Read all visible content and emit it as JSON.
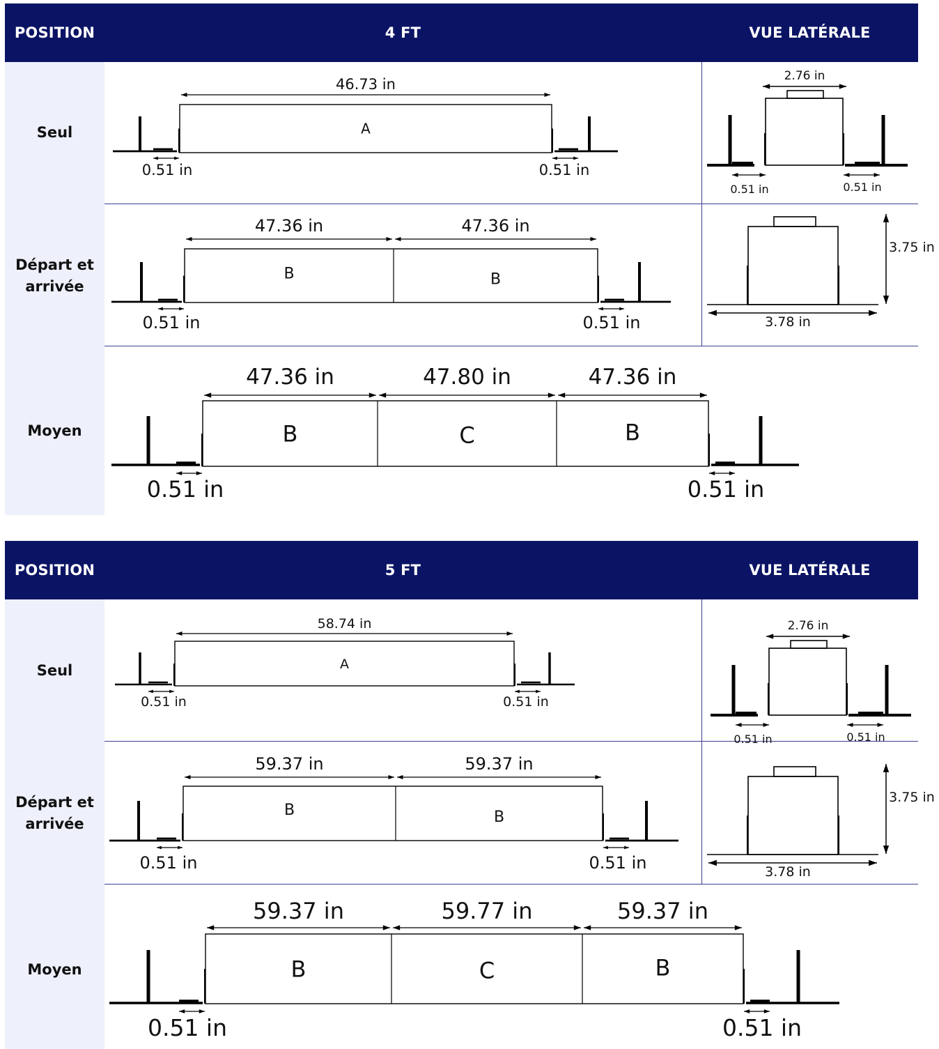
{
  "tables": [
    {
      "header": {
        "position": "POSITION",
        "size": "4 FT",
        "side_view": "VUE LATÉRALE"
      },
      "rows": [
        {
          "label": "Seul",
          "segments": [
            {
              "letter": "A",
              "dim": "46.73 in"
            }
          ],
          "gap_left": "0.51 in",
          "gap_right": "0.51 in"
        },
        {
          "label": "Départ et\narrivée",
          "segments": [
            {
              "letter": "B",
              "dim": "47.36 in"
            },
            {
              "letter": "B",
              "dim": "47.36 in"
            }
          ],
          "gap_left": "0.51 in",
          "gap_right": "0.51 in"
        },
        {
          "label": "Moyen",
          "segments": [
            {
              "letter": "B",
              "dim": "47.36 in"
            },
            {
              "letter": "C",
              "dim": "47.80 in"
            },
            {
              "letter": "B",
              "dim": "47.36 in"
            }
          ],
          "gap_left": "0.51 in",
          "gap_right": "0.51 in"
        }
      ],
      "side_view": {
        "top_width": "2.76 in",
        "gap_left": "0.51 in",
        "gap_right": "0.51 in",
        "height": "3.75 in",
        "base_width": "3.78 in"
      }
    },
    {
      "header": {
        "position": "POSITION",
        "size": "5 FT",
        "side_view": "VUE LATÉRALE"
      },
      "rows": [
        {
          "label": "Seul",
          "segments": [
            {
              "letter": "A",
              "dim": "58.74 in"
            }
          ],
          "gap_left": "0.51 in",
          "gap_right": "0.51 in"
        },
        {
          "label": "Départ et\narrivée",
          "segments": [
            {
              "letter": "B",
              "dim": "59.37 in"
            },
            {
              "letter": "B",
              "dim": "59.37 in"
            }
          ],
          "gap_left": "0.51 in",
          "gap_right": "0.51 in"
        },
        {
          "label": "Moyen",
          "segments": [
            {
              "letter": "B",
              "dim": "59.37 in"
            },
            {
              "letter": "C",
              "dim": "59.77 in"
            },
            {
              "letter": "B",
              "dim": "59.37 in"
            }
          ],
          "gap_left": "0.51 in",
          "gap_right": "0.51 in"
        }
      ],
      "side_view": {
        "top_width": "2.76 in",
        "gap_left": "0.51 in",
        "gap_right": "0.51 in",
        "height": "3.75 in",
        "base_width": "3.78 in"
      }
    }
  ]
}
